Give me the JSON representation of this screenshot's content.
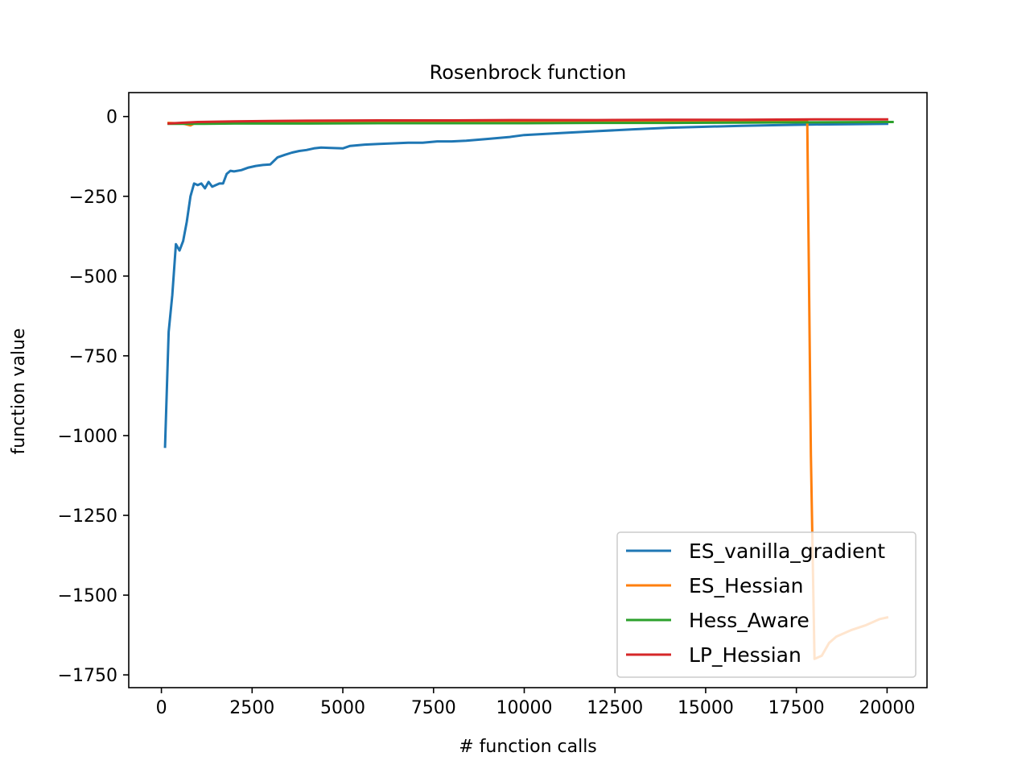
{
  "chart_data": {
    "type": "line",
    "title": "Rosenbrock function",
    "xlabel": "# function calls",
    "ylabel": "function value",
    "xlim": [
      -900,
      21100
    ],
    "ylim": [
      -1790,
      75
    ],
    "xticks": [
      0,
      2500,
      5000,
      7500,
      10000,
      12500,
      15000,
      17500,
      20000
    ],
    "xtick_labels": [
      "0",
      "2500",
      "5000",
      "7500",
      "10000",
      "12500",
      "15000",
      "17500",
      "20000"
    ],
    "yticks": [
      0,
      -250,
      -500,
      -750,
      -1000,
      -1250,
      -1500,
      -1750
    ],
    "ytick_labels": [
      "0",
      "−250",
      "−500",
      "−750",
      "−1000",
      "−1250",
      "−1500",
      "−1750"
    ],
    "grid": false,
    "legend_position": "lower right",
    "series": [
      {
        "name": "ES_vanilla_gradient",
        "color": "#1f77b4",
        "x": [
          100,
          200,
          300,
          400,
          500,
          600,
          700,
          800,
          900,
          1000,
          1100,
          1200,
          1300,
          1400,
          1500,
          1600,
          1700,
          1800,
          1900,
          2000,
          2200,
          2400,
          2600,
          2800,
          3000,
          3200,
          3400,
          3600,
          3800,
          4000,
          4200,
          4400,
          4600,
          5000,
          5200,
          5600,
          6000,
          6400,
          6800,
          7200,
          7600,
          8000,
          8400,
          9000,
          9600,
          10000,
          11000,
          12000,
          13000,
          14000,
          15000,
          16000,
          17000,
          18000,
          19000,
          20000
        ],
        "y": [
          -1035,
          -675,
          -560,
          -400,
          -420,
          -390,
          -330,
          -250,
          -210,
          -215,
          -210,
          -225,
          -205,
          -220,
          -215,
          -210,
          -210,
          -180,
          -170,
          -172,
          -168,
          -160,
          -155,
          -152,
          -150,
          -128,
          -120,
          -113,
          -108,
          -105,
          -100,
          -97,
          -98,
          -100,
          -92,
          -88,
          -86,
          -84,
          -82,
          -82,
          -78,
          -78,
          -76,
          -70,
          -64,
          -58,
          -52,
          -46,
          -40,
          -35,
          -32,
          -29,
          -27,
          -25,
          -24,
          -23
        ]
      },
      {
        "name": "ES_Hessian",
        "color": "#ff7f0e",
        "x": [
          200,
          600,
          800,
          900,
          1200,
          2000,
          4000,
          8000,
          12000,
          16000,
          17800,
          17900,
          18000,
          18200,
          18400,
          18600,
          19000,
          19400,
          19800,
          20000
        ],
        "y": [
          -20,
          -22,
          -28,
          -22,
          -20,
          -19,
          -18,
          -17,
          -16,
          -15,
          -15,
          -1060,
          -1700,
          -1690,
          -1650,
          -1630,
          -1610,
          -1595,
          -1575,
          -1570
        ]
      },
      {
        "name": "Hess_Aware",
        "color": "#2ca02c",
        "x": [
          200,
          1000,
          2000,
          4000,
          6000,
          8000,
          10000,
          12000,
          14000,
          16000,
          18000,
          20000,
          20150
        ],
        "y": [
          -23,
          -23,
          -22,
          -22,
          -21,
          -21,
          -21,
          -20,
          -20,
          -19,
          -18,
          -17,
          -17
        ]
      },
      {
        "name": "LP_Hessian",
        "color": "#d62728",
        "x": [
          200,
          500,
          1000,
          2000,
          3000,
          4000,
          6000,
          8000,
          10000,
          12000,
          14000,
          16000,
          18000,
          20000
        ],
        "y": [
          -22,
          -20,
          -17,
          -15,
          -14,
          -13,
          -12,
          -12,
          -11,
          -11,
          -10,
          -10,
          -9,
          -9
        ]
      }
    ]
  }
}
